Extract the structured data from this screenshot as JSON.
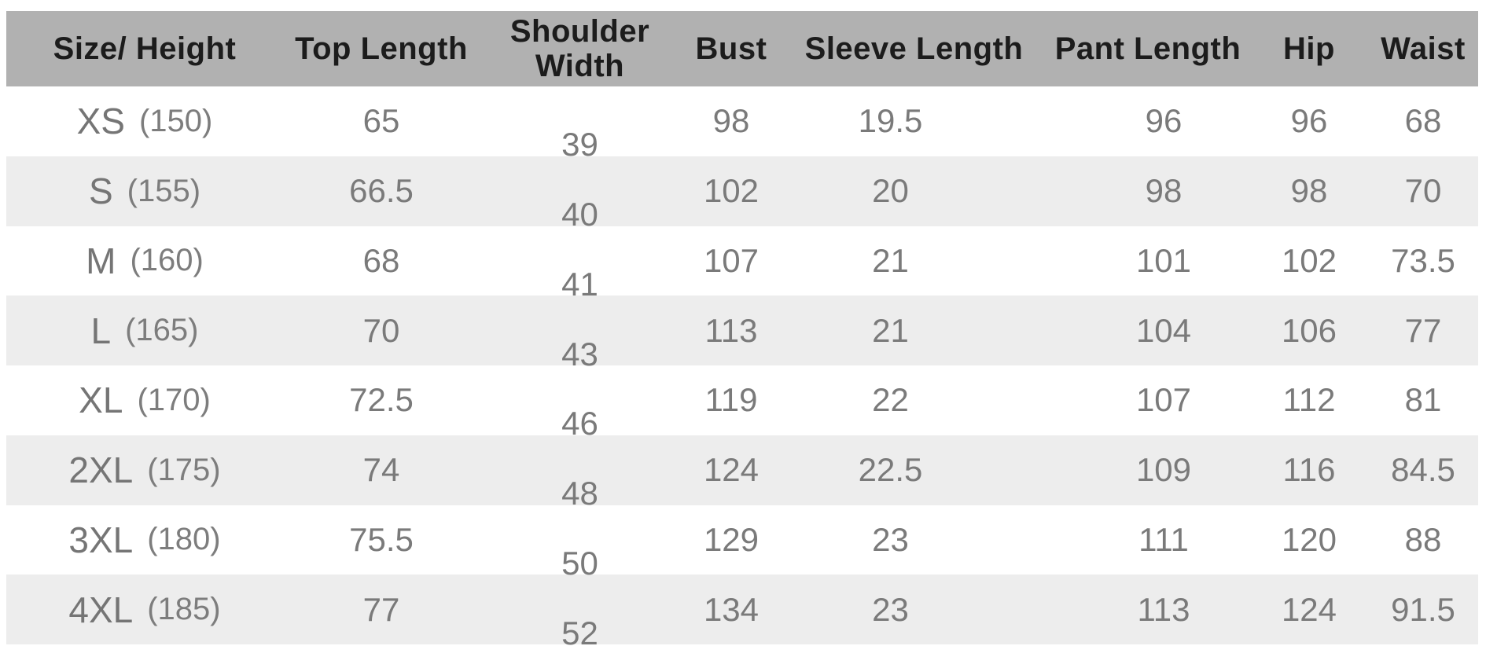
{
  "colors": {
    "header_bg": "#b1b1b1",
    "header_text": "#1c1c1c",
    "stripe_bg": "#ededed",
    "body_text": "#7a7a7a",
    "page_bg": "#ffffff"
  },
  "table": {
    "columns": [
      {
        "key": "size",
        "label": "Size/ Height"
      },
      {
        "key": "top_length",
        "label": "Top Length"
      },
      {
        "key": "shoulder_width",
        "label": "Shoulder Width"
      },
      {
        "key": "bust",
        "label": "Bust"
      },
      {
        "key": "sleeve_length",
        "label": "Sleeve Length"
      },
      {
        "key": "pant_length",
        "label": "Pant Length"
      },
      {
        "key": "hip",
        "label": "Hip"
      },
      {
        "key": "waist",
        "label": "Waist"
      }
    ],
    "rows": [
      {
        "code": "XS",
        "height": "(150)",
        "top_length": "65",
        "shoulder_width": "39",
        "bust": "98",
        "sleeve_length": "19.5",
        "pant_length": "96",
        "hip": "96",
        "waist": "68"
      },
      {
        "code": "S",
        "height": "(155)",
        "top_length": "66.5",
        "shoulder_width": "40",
        "bust": "102",
        "sleeve_length": "20",
        "pant_length": "98",
        "hip": "98",
        "waist": "70"
      },
      {
        "code": "M",
        "height": "(160)",
        "top_length": "68",
        "shoulder_width": "41",
        "bust": "107",
        "sleeve_length": "21",
        "pant_length": "101",
        "hip": "102",
        "waist": "73.5"
      },
      {
        "code": "L",
        "height": "(165)",
        "top_length": "70",
        "shoulder_width": "43",
        "bust": "113",
        "sleeve_length": "21",
        "pant_length": "104",
        "hip": "106",
        "waist": "77"
      },
      {
        "code": "XL",
        "height": "(170)",
        "top_length": "72.5",
        "shoulder_width": "46",
        "bust": "119",
        "sleeve_length": "22",
        "pant_length": "107",
        "hip": "112",
        "waist": "81"
      },
      {
        "code": "2XL",
        "height": "(175)",
        "top_length": "74",
        "shoulder_width": "48",
        "bust": "124",
        "sleeve_length": "22.5",
        "pant_length": "109",
        "hip": "116",
        "waist": "84.5"
      },
      {
        "code": "3XL",
        "height": "(180)",
        "top_length": "75.5",
        "shoulder_width": "50",
        "bust": "129",
        "sleeve_length": "23",
        "pant_length": "111",
        "hip": "120",
        "waist": "88"
      },
      {
        "code": "4XL",
        "height": "(185)",
        "top_length": "77",
        "shoulder_width": "52",
        "bust": "134",
        "sleeve_length": "23",
        "pant_length": "113",
        "hip": "124",
        "waist": "91.5"
      }
    ]
  },
  "chart_data": {
    "type": "table",
    "title": "Garment size chart",
    "columns": [
      "Size/ Height",
      "Top Length",
      "Shoulder Width",
      "Bust",
      "Sleeve Length",
      "Pant Length",
      "Hip",
      "Waist"
    ],
    "rows": [
      [
        "XS (150)",
        65,
        39,
        98,
        19.5,
        96,
        96,
        68
      ],
      [
        "S (155)",
        66.5,
        40,
        102,
        20,
        98,
        98,
        70
      ],
      [
        "M (160)",
        68,
        41,
        107,
        21,
        101,
        102,
        73.5
      ],
      [
        "L (165)",
        70,
        43,
        113,
        21,
        104,
        106,
        77
      ],
      [
        "XL (170)",
        72.5,
        46,
        119,
        22,
        107,
        112,
        81
      ],
      [
        "2XL (175)",
        74,
        48,
        124,
        22.5,
        109,
        116,
        84.5
      ],
      [
        "3XL (180)",
        75.5,
        50,
        129,
        23,
        111,
        120,
        88
      ],
      [
        "4XL (185)",
        77,
        52,
        134,
        23,
        113,
        124,
        91.5
      ]
    ]
  }
}
